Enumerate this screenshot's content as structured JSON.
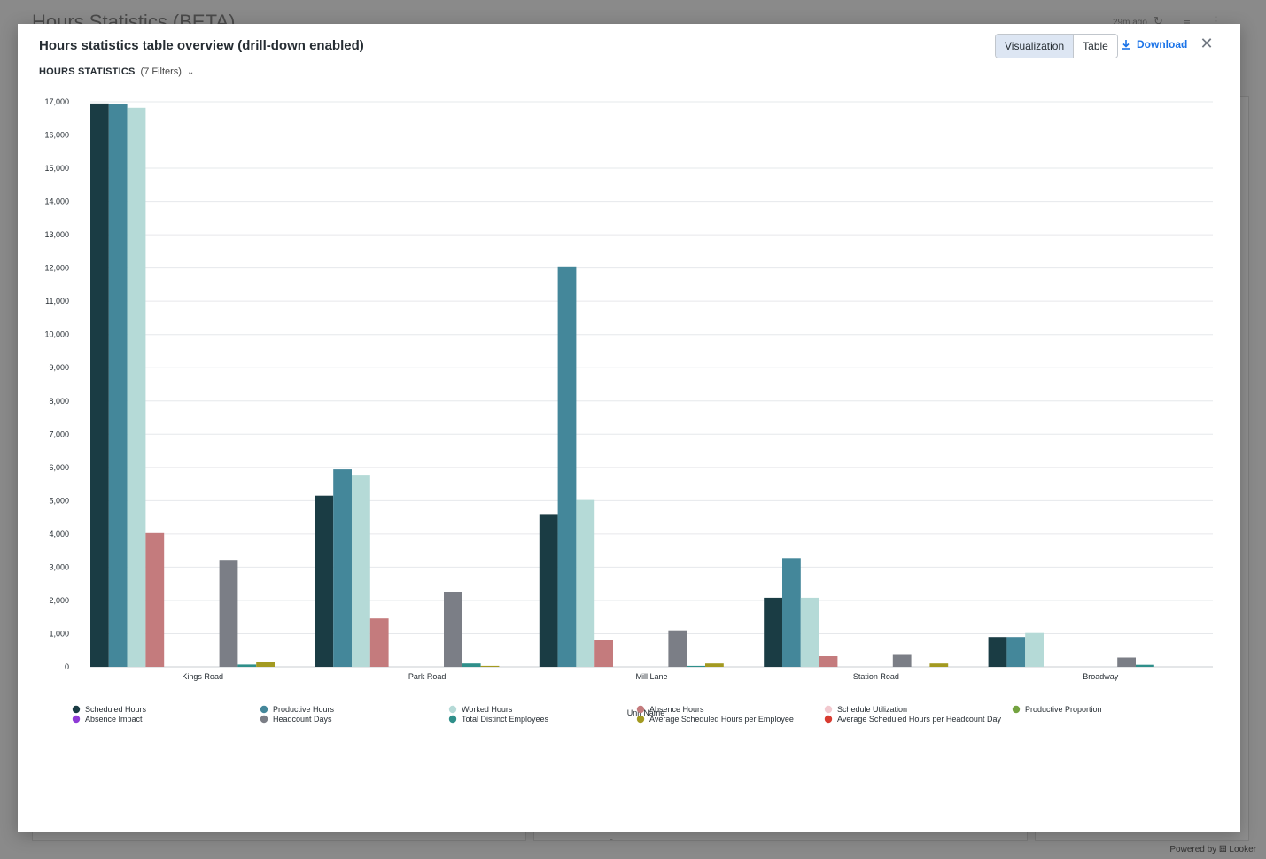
{
  "background": {
    "title": "Hours Statistics (BETA)",
    "updated": "29m ago",
    "powered_by": "Powered by ⚅ Looker"
  },
  "modal": {
    "title": "Hours statistics table overview (drill-down enabled)",
    "view_tabs": [
      "Visualization",
      "Table"
    ],
    "active_tab": "Visualization",
    "download_label": "Download",
    "close_icon": "close-icon",
    "tile_name": "HOURS STATISTICS",
    "filters_label": "(7 Filters)"
  },
  "chart_data": {
    "type": "bar",
    "xlabel": "Unit Name",
    "ylabel": "",
    "ylim": [
      0,
      17000
    ],
    "yticks": [
      0,
      1000,
      2000,
      3000,
      4000,
      5000,
      6000,
      7000,
      8000,
      9000,
      10000,
      11000,
      12000,
      13000,
      14000,
      15000,
      16000,
      17000
    ],
    "grid": true,
    "legend_position": "bottom",
    "categories": [
      "Kings Road",
      "Park Road",
      "Mill Lane",
      "Station Road",
      "Broadway"
    ],
    "series": [
      {
        "name": "Scheduled Hours",
        "color": "#1a3c44",
        "values": [
          16950,
          5150,
          4600,
          2080,
          900
        ]
      },
      {
        "name": "Productive Hours",
        "color": "#44879a",
        "values": [
          16920,
          5940,
          12050,
          3270,
          900
        ]
      },
      {
        "name": "Worked Hours",
        "color": "#b5dad7",
        "values": [
          16820,
          5780,
          5020,
          2080,
          1020
        ]
      },
      {
        "name": "Absence Hours",
        "color": "#c47b7d",
        "values": [
          4030,
          1460,
          800,
          320,
          0
        ]
      },
      {
        "name": "Schedule Utilization",
        "color": "#f2c9cf",
        "values": [
          0,
          0,
          0,
          0,
          0
        ]
      },
      {
        "name": "Productive Proportion",
        "color": "#74a340",
        "values": [
          0,
          0,
          0,
          0,
          0
        ]
      },
      {
        "name": "Absence Impact",
        "color": "#8e3ad6",
        "values": [
          0,
          0,
          0,
          0,
          0
        ]
      },
      {
        "name": "Headcount Days",
        "color": "#7b7e86",
        "values": [
          3220,
          2250,
          1100,
          360,
          280
        ]
      },
      {
        "name": "Total Distinct Employees",
        "color": "#2f8f8a",
        "values": [
          70,
          100,
          30,
          0,
          60
        ]
      },
      {
        "name": "Average Scheduled Hours per Employee",
        "color": "#a39a21",
        "values": [
          160,
          30,
          100,
          100,
          0
        ]
      },
      {
        "name": "Average Scheduled Hours per Headcount Day",
        "color": "#d83b30",
        "values": [
          0,
          0,
          0,
          0,
          0
        ]
      }
    ]
  }
}
